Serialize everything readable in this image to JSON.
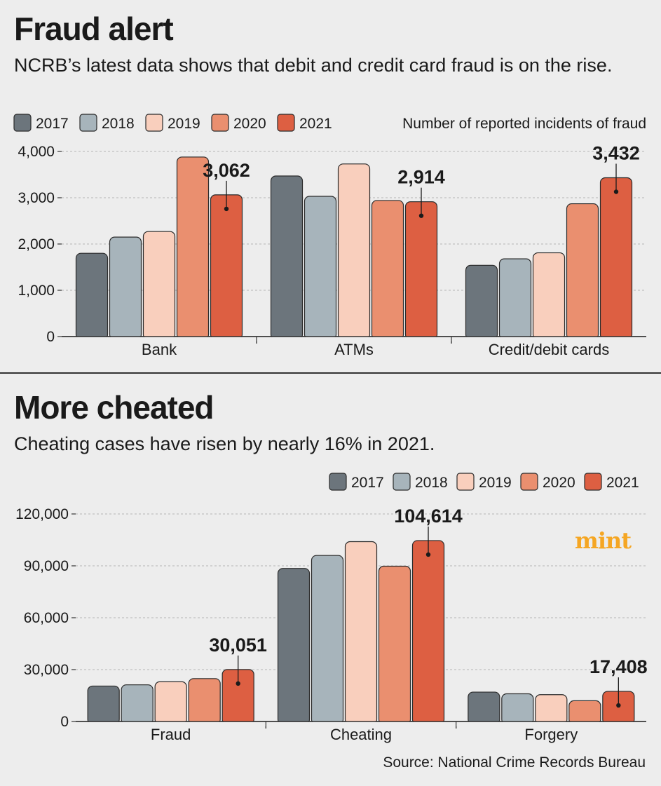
{
  "colors": {
    "year_2017": "#6c757c",
    "year_2018": "#a7b4bb",
    "year_2019": "#f9cfbd",
    "year_2020": "#ea8f6f",
    "year_2021": "#dd5f42"
  },
  "brand": {
    "logo": "mint",
    "logo_color": "#f5a623"
  },
  "source": "Source: National Crime Records Bureau",
  "chart_data": [
    {
      "type": "bar",
      "title": "Fraud alert",
      "subtitle": "NCRB’s latest data shows that debit and credit card fraud is on the rise.",
      "unit_label": "Number of reported incidents of fraud",
      "categories": [
        "Bank",
        "ATMs",
        "Credit/debit cards"
      ],
      "series": [
        {
          "name": "2017",
          "values": [
            1800,
            3470,
            1540
          ]
        },
        {
          "name": "2018",
          "values": [
            2150,
            3030,
            1680
          ]
        },
        {
          "name": "2019",
          "values": [
            2270,
            3730,
            1810
          ]
        },
        {
          "name": "2020",
          "values": [
            3880,
            2940,
            2870
          ]
        },
        {
          "name": "2021",
          "values": [
            3062,
            2914,
            3432
          ]
        }
      ],
      "ylim": [
        0,
        4000
      ],
      "yticks": [
        0,
        1000,
        2000,
        3000,
        4000
      ],
      "ytick_labels": [
        "0",
        "1,000",
        "2,000",
        "3,000",
        "4,000"
      ],
      "data_labels": [
        "3,062",
        "2,914",
        "3,432"
      ],
      "legend": "top-left",
      "grid": true
    },
    {
      "type": "bar",
      "title": "More cheated",
      "subtitle": "Cheating cases have risen by nearly 16% in 2021.",
      "categories": [
        "Fraud",
        "Cheating",
        "Forgery"
      ],
      "series": [
        {
          "name": "2017",
          "values": [
            20500,
            88500,
            17000
          ]
        },
        {
          "name": "2018",
          "values": [
            21200,
            96000,
            16000
          ]
        },
        {
          "name": "2019",
          "values": [
            23000,
            104000,
            15500
          ]
        },
        {
          "name": "2020",
          "values": [
            24800,
            89800,
            12000
          ]
        },
        {
          "name": "2021",
          "values": [
            30051,
            104614,
            17408
          ]
        }
      ],
      "ylim": [
        0,
        120000
      ],
      "yticks": [
        0,
        30000,
        60000,
        90000,
        120000
      ],
      "ytick_labels": [
        "0",
        "30,000",
        "60,000",
        "90,000",
        "120,000"
      ],
      "data_labels": [
        "30,051",
        "104,614",
        "17,408"
      ],
      "legend": "top-right",
      "grid": true
    }
  ]
}
